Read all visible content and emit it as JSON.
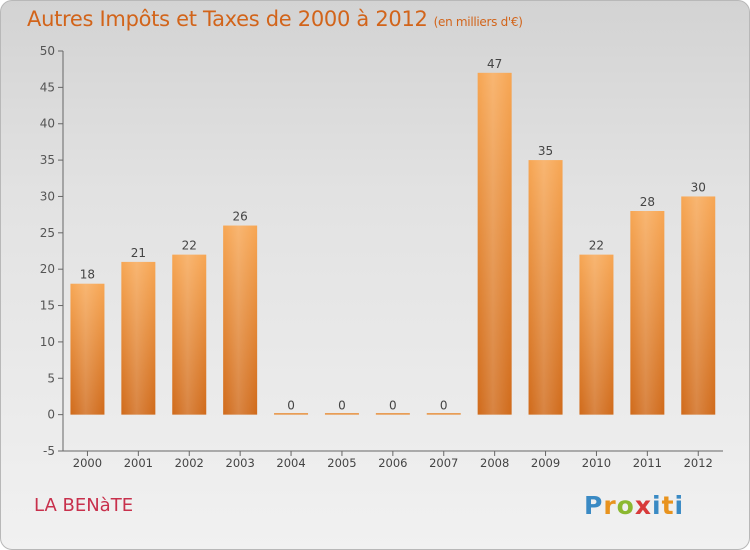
{
  "chart_title": "Autres Impôts et Taxes de 2000 à 2012",
  "chart_unit": "(en milliers d'€)",
  "place_label": "LA BENàTE",
  "brand_logo": "Proxiti",
  "colors": {
    "title": "#d2641a",
    "bar_light": "#f7a653",
    "bar_dark": "#d06a1a",
    "place": "#c8304c",
    "axis": "#555555"
  },
  "chart_data": {
    "type": "bar",
    "categories": [
      "2000",
      "2001",
      "2002",
      "2003",
      "2004",
      "2005",
      "2006",
      "2007",
      "2008",
      "2009",
      "2010",
      "2011",
      "2012"
    ],
    "values": [
      18,
      21,
      22,
      26,
      0,
      0,
      0,
      0,
      47,
      35,
      22,
      28,
      30
    ],
    "title": "Autres Impôts et Taxes de 2000 à 2012",
    "subtitle": "(en milliers d'€)",
    "xlabel": "",
    "ylabel": "",
    "ylim": [
      -5,
      50
    ],
    "yticks": [
      -5,
      0,
      5,
      10,
      15,
      20,
      25,
      30,
      35,
      40,
      45,
      50
    ],
    "grid": false,
    "data_labels": true
  }
}
